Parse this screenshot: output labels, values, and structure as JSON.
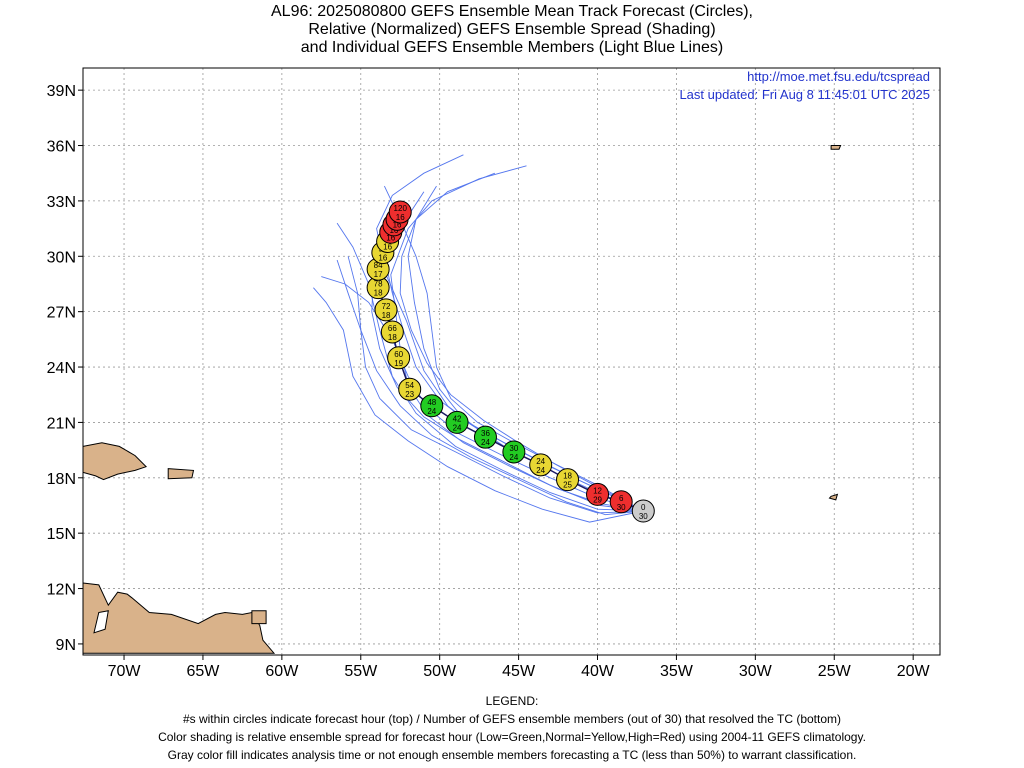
{
  "header": {
    "line1": "AL96: 2025080800 GEFS Ensemble Mean Track Forecast (Circles),",
    "line2": "Relative (Normalized) GEFS Ensemble Spread (Shading)",
    "line3": "and Individual GEFS Ensemble Members (Light Blue Lines)"
  },
  "source": {
    "url": "http://moe.met.fsu.edu/tcspread",
    "updated": "Last updated: Fri Aug 8 11:45:01 UTC 2025"
  },
  "axes": {
    "lon_labels": [
      "70W",
      "65W",
      "60W",
      "55W",
      "50W",
      "45W",
      "40W",
      "35W",
      "30W",
      "25W",
      "20W"
    ],
    "lat_labels": [
      "39N",
      "36N",
      "33N",
      "30N",
      "27N",
      "24N",
      "21N",
      "18N",
      "15N",
      "12N",
      "9N"
    ],
    "lon_values": [
      -70,
      -65,
      -60,
      -55,
      -50,
      -45,
      -40,
      -35,
      -30,
      -25,
      -20
    ],
    "lat_values": [
      39,
      36,
      33,
      30,
      27,
      24,
      21,
      18,
      15,
      12,
      9
    ],
    "lon_range": [
      -72.6,
      -18.3
    ],
    "lat_range": [
      8.4,
      40.2
    ]
  },
  "colors": {
    "land": "#d9b28a",
    "member_line": "#5577ee",
    "mean_line": "#1a1a66",
    "low_spread": "#22cc22",
    "normal_spread": "#e8d733",
    "high_spread": "#ee2e2e",
    "analysis": "#cccccc",
    "link": "#2233cc"
  },
  "track": [
    {
      "hour": "0",
      "members": "30",
      "lat": 16.2,
      "lon": -37.1,
      "cat": "analysis"
    },
    {
      "hour": "6",
      "members": "30",
      "lat": 16.7,
      "lon": -38.5,
      "cat": "high"
    },
    {
      "hour": "12",
      "members": "29",
      "lat": 17.1,
      "lon": -40.0,
      "cat": "high"
    },
    {
      "hour": "18",
      "members": "25",
      "lat": 17.9,
      "lon": -41.9,
      "cat": "normal"
    },
    {
      "hour": "24",
      "members": "24",
      "lat": 18.7,
      "lon": -43.6,
      "cat": "normal"
    },
    {
      "hour": "30",
      "members": "24",
      "lat": 19.4,
      "lon": -45.3,
      "cat": "low"
    },
    {
      "hour": "36",
      "members": "24",
      "lat": 20.2,
      "lon": -47.1,
      "cat": "low"
    },
    {
      "hour": "42",
      "members": "24",
      "lat": 21.0,
      "lon": -48.9,
      "cat": "low"
    },
    {
      "hour": "48",
      "members": "24",
      "lat": 21.9,
      "lon": -50.5,
      "cat": "low"
    },
    {
      "hour": "54",
      "members": "23",
      "lat": 22.8,
      "lon": -51.9,
      "cat": "normal"
    },
    {
      "hour": "60",
      "members": "19",
      "lat": 24.5,
      "lon": -52.6,
      "cat": "normal"
    },
    {
      "hour": "66",
      "members": "18",
      "lat": 25.9,
      "lon": -53.0,
      "cat": "normal"
    },
    {
      "hour": "72",
      "members": "18",
      "lat": 27.1,
      "lon": -53.4,
      "cat": "normal"
    },
    {
      "hour": "78",
      "members": "18",
      "lat": 28.3,
      "lon": -53.9,
      "cat": "normal"
    },
    {
      "hour": "84",
      "members": "17",
      "lat": 29.3,
      "lon": -53.9,
      "cat": "normal"
    },
    {
      "hour": "90",
      "members": "16",
      "lat": 30.2,
      "lon": -53.6,
      "cat": "normal"
    },
    {
      "hour": "96",
      "members": "16",
      "lat": 30.8,
      "lon": -53.3,
      "cat": "normal"
    },
    {
      "hour": "102",
      "members": "16",
      "lat": 31.3,
      "lon": -53.1,
      "cat": "high"
    },
    {
      "hour": "108",
      "members": "16",
      "lat": 31.7,
      "lon": -52.9,
      "cat": "high"
    },
    {
      "hour": "114",
      "members": "16",
      "lat": 32.0,
      "lon": -52.7,
      "cat": "high"
    },
    {
      "hour": "120",
      "members": "16",
      "lat": 32.4,
      "lon": -52.5,
      "cat": "high"
    }
  ],
  "members": [
    [
      [
        -37.1,
        16.2
      ],
      [
        -40,
        16.3
      ],
      [
        -43,
        17.2
      ],
      [
        -46,
        18.4
      ],
      [
        -49,
        19.7
      ],
      [
        -51.5,
        21.5
      ],
      [
        -53,
        23.5
      ],
      [
        -53.8,
        26
      ],
      [
        -54.5,
        28.5
      ],
      [
        -55.5,
        30.5
      ],
      [
        -56.5,
        31.8
      ]
    ],
    [
      [
        -37.1,
        16.2
      ],
      [
        -40,
        16.9
      ],
      [
        -43,
        18
      ],
      [
        -46,
        19.2
      ],
      [
        -48.8,
        20.4
      ],
      [
        -50.8,
        21.8
      ],
      [
        -52,
        23.5
      ],
      [
        -53,
        25.5
      ],
      [
        -54.5,
        27.5
      ],
      [
        -56,
        28.5
      ],
      [
        -57.5,
        28.9
      ]
    ],
    [
      [
        -37.1,
        16.2
      ],
      [
        -40,
        17.4
      ],
      [
        -43,
        18.6
      ],
      [
        -45.5,
        19.7
      ],
      [
        -48,
        20.9
      ],
      [
        -50,
        22.2
      ],
      [
        -51.5,
        24
      ],
      [
        -52.3,
        26
      ],
      [
        -53,
        28
      ],
      [
        -53.5,
        30
      ],
      [
        -52.3,
        31.8
      ],
      [
        -51,
        33.5
      ]
    ],
    [
      [
        -37.1,
        16.2
      ],
      [
        -39.5,
        17.2
      ],
      [
        -42,
        18.2
      ],
      [
        -45,
        19.5
      ],
      [
        -47.5,
        20.6
      ],
      [
        -49.5,
        21.9
      ],
      [
        -51,
        23.8
      ],
      [
        -52.1,
        26.5
      ],
      [
        -53.4,
        29
      ],
      [
        -54,
        31.5
      ],
      [
        -53,
        33.3
      ],
      [
        -51,
        34.5
      ],
      [
        -48.5,
        35.5
      ]
    ],
    [
      [
        -37.1,
        16.2
      ],
      [
        -39.8,
        16.6
      ],
      [
        -42.5,
        17.4
      ],
      [
        -45.5,
        18.6
      ],
      [
        -48.5,
        19.9
      ],
      [
        -50.8,
        21.4
      ],
      [
        -52,
        23
      ],
      [
        -52.5,
        25
      ],
      [
        -52.8,
        27
      ],
      [
        -53.1,
        29
      ],
      [
        -52,
        31.5
      ],
      [
        -50.5,
        33
      ],
      [
        -47.5,
        34.2
      ],
      [
        -44.5,
        34.9
      ]
    ],
    [
      [
        -37.1,
        16.2
      ],
      [
        -40,
        17.5
      ],
      [
        -42.6,
        18.7
      ],
      [
        -45,
        19.9
      ],
      [
        -47.2,
        21.1
      ],
      [
        -49.3,
        22.5
      ],
      [
        -50.8,
        24.2
      ],
      [
        -51.8,
        26
      ],
      [
        -52.5,
        28
      ],
      [
        -52.4,
        30
      ],
      [
        -51.5,
        32
      ],
      [
        -49.5,
        33.5
      ],
      [
        -46.5,
        34.5
      ]
    ],
    [
      [
        -37.1,
        16.2
      ],
      [
        -40.5,
        15.6
      ],
      [
        -43.5,
        16.3
      ],
      [
        -46.5,
        17.3
      ],
      [
        -49.5,
        18.6
      ],
      [
        -52,
        20
      ],
      [
        -54.1,
        21.4
      ],
      [
        -55.5,
        23.5
      ],
      [
        -56.1,
        26
      ],
      [
        -57.2,
        27.5
      ],
      [
        -58,
        28.3
      ]
    ],
    [
      [
        -37.1,
        16.2
      ],
      [
        -39.5,
        16
      ],
      [
        -42,
        16.7
      ],
      [
        -45,
        17.9
      ],
      [
        -48,
        19.1
      ],
      [
        -50.5,
        20.3
      ],
      [
        -52.5,
        21.9
      ],
      [
        -54,
        23.8
      ],
      [
        -55,
        26
      ],
      [
        -55.8,
        28
      ],
      [
        -56.5,
        29.8
      ]
    ],
    [
      [
        -37.1,
        16.2
      ],
      [
        -40,
        17.2
      ],
      [
        -43,
        18.4
      ],
      [
        -45.9,
        19.7
      ],
      [
        -48.4,
        21.1
      ],
      [
        -50,
        22.8
      ],
      [
        -51,
        25
      ],
      [
        -51.6,
        27.5
      ],
      [
        -52,
        30
      ],
      [
        -51.5,
        32
      ],
      [
        -50.2,
        33.8
      ]
    ],
    [
      [
        -37.1,
        16.2
      ],
      [
        -39.8,
        16.5
      ],
      [
        -43,
        17.6
      ],
      [
        -46,
        18.9
      ],
      [
        -48.8,
        20.1
      ],
      [
        -51,
        21.3
      ],
      [
        -52.7,
        22.9
      ],
      [
        -53.8,
        25
      ],
      [
        -54.3,
        27
      ],
      [
        -54.2,
        29
      ],
      [
        -53.6,
        31
      ],
      [
        -52.6,
        33
      ]
    ],
    [
      [
        -37.1,
        16.2
      ],
      [
        -40,
        17.6
      ],
      [
        -42.8,
        18.8
      ],
      [
        -45.3,
        19.9
      ],
      [
        -47.6,
        21
      ],
      [
        -49.3,
        22.3
      ],
      [
        -50.2,
        24
      ],
      [
        -50.5,
        26
      ],
      [
        -50.8,
        28
      ],
      [
        -51.5,
        30
      ],
      [
        -52.5,
        32
      ],
      [
        -53.5,
        33.8
      ]
    ],
    [
      [
        -37.1,
        16.2
      ],
      [
        -40,
        16.1
      ],
      [
        -43,
        16.9
      ],
      [
        -46,
        18.1
      ],
      [
        -49,
        19.4
      ],
      [
        -51.8,
        20.6
      ],
      [
        -53.8,
        22.3
      ],
      [
        -54.7,
        24
      ],
      [
        -55,
        26
      ],
      [
        -55.2,
        28
      ],
      [
        -55.8,
        30
      ]
    ]
  ],
  "land": {
    "hispaniola": [
      [
        -72.6,
        19.7
      ],
      [
        -71.4,
        19.9
      ],
      [
        -70.3,
        19.7
      ],
      [
        -69.3,
        19.2
      ],
      [
        -68.6,
        18.6
      ],
      [
        -69.3,
        18.4
      ],
      [
        -70.4,
        18.2
      ],
      [
        -71.3,
        17.9
      ],
      [
        -71.8,
        18.1
      ],
      [
        -72.6,
        18.3
      ]
    ],
    "puerto_rico": [
      [
        -67.2,
        18.5
      ],
      [
        -65.6,
        18.4
      ],
      [
        -65.7,
        18.0
      ],
      [
        -67.2,
        17.95
      ]
    ],
    "south_america": [
      [
        -72.6,
        12.3
      ],
      [
        -71.6,
        12.2
      ],
      [
        -71,
        11.1
      ],
      [
        -70.4,
        11.8
      ],
      [
        -69.8,
        11.7
      ],
      [
        -69.5,
        11.5
      ],
      [
        -68.4,
        10.7
      ],
      [
        -67,
        10.6
      ],
      [
        -65.3,
        10.1
      ],
      [
        -64.2,
        10.6
      ],
      [
        -63.6,
        10.7
      ],
      [
        -62.5,
        10.6
      ],
      [
        -61.9,
        10.7
      ],
      [
        -61.4,
        10.0
      ],
      [
        -61.2,
        9.2
      ],
      [
        -60.5,
        8.5
      ],
      [
        -72.6,
        8.5
      ]
    ],
    "trinidad": [
      [
        -61.9,
        10.8
      ],
      [
        -61.0,
        10.8
      ],
      [
        -61.0,
        10.1
      ],
      [
        -61.9,
        10.1
      ]
    ],
    "lake_maracaibo": [
      [
        -71.6,
        10.7
      ],
      [
        -71.0,
        10.8
      ],
      [
        -71.2,
        9.8
      ],
      [
        -71.9,
        9.6
      ]
    ],
    "cabo_verde": [
      [
        -25.2,
        17.0
      ],
      [
        -24.8,
        17.1
      ],
      [
        -24.9,
        16.8
      ],
      [
        -25.3,
        16.9
      ]
    ],
    "bermuda": [
      [
        -25.2,
        36.0
      ],
      [
        -24.6,
        36.0
      ],
      [
        -24.7,
        35.8
      ],
      [
        -25.2,
        35.8
      ]
    ]
  }
}
